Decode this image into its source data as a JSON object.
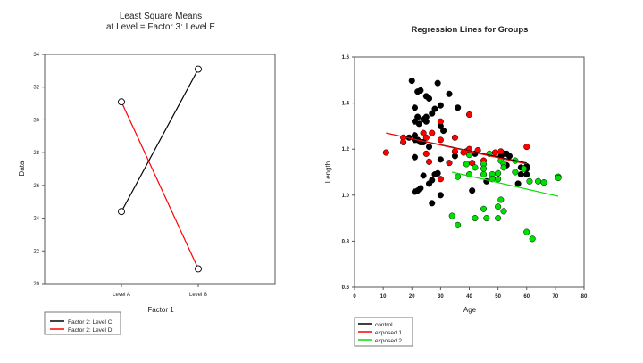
{
  "chart_data": [
    {
      "type": "line",
      "title": "Least Square Means",
      "subtitle": "at Level = Factor 3: Level E",
      "xlabel": "Factor 1",
      "ylabel": "Data",
      "categories": [
        "Level A",
        "Level B"
      ],
      "ylim": [
        20,
        34
      ],
      "yticks": [
        20,
        22,
        24,
        26,
        28,
        30,
        32,
        34
      ],
      "grid": false,
      "legend_position": "bottom-left",
      "series": [
        {
          "name": "Factor 2: Level C",
          "color": "#000000",
          "values": [
            24.4,
            33.1
          ]
        },
        {
          "name": "Factor 2: Level D",
          "color": "#ff0000",
          "values": [
            31.1,
            20.9
          ]
        }
      ]
    },
    {
      "type": "scatter",
      "title": "Regression Lines for Groups",
      "xlabel": "Age",
      "ylabel": "Length",
      "xlim": [
        0,
        80
      ],
      "ylim": [
        0.6,
        1.6
      ],
      "xticks": [
        0,
        10,
        20,
        30,
        40,
        50,
        60,
        70,
        80
      ],
      "yticks": [
        0.6,
        0.8,
        1.0,
        1.2,
        1.4,
        1.6
      ],
      "grid": false,
      "legend_position": "bottom-left",
      "series": [
        {
          "name": "control",
          "color": "#000000",
          "regression": [
            [
              20,
              1.245
            ],
            [
              60,
              1.14
            ]
          ],
          "points": [
            [
              20,
              1.497
            ],
            [
              29,
              1.487
            ],
            [
              22,
              1.45
            ],
            [
              23,
              1.455
            ],
            [
              25,
              1.43
            ],
            [
              26,
              1.42
            ],
            [
              33,
              1.44
            ],
            [
              21,
              1.38
            ],
            [
              28,
              1.375
            ],
            [
              30,
              1.39
            ],
            [
              36,
              1.38
            ],
            [
              27,
              1.355
            ],
            [
              22,
              1.34
            ],
            [
              24,
              1.33
            ],
            [
              25,
              1.34
            ],
            [
              21,
              1.32
            ],
            [
              22.5,
              1.31
            ],
            [
              25,
              1.32
            ],
            [
              30,
              1.3
            ],
            [
              31,
              1.28
            ],
            [
              19,
              1.25
            ],
            [
              21,
              1.26
            ],
            [
              21,
              1.24
            ],
            [
              22,
              1.24
            ],
            [
              23,
              1.23
            ],
            [
              24,
              1.23
            ],
            [
              26,
              1.21
            ],
            [
              21,
              1.165
            ],
            [
              30,
              1.155
            ],
            [
              35,
              1.17
            ],
            [
              24,
              1.085
            ],
            [
              28,
              1.09
            ],
            [
              29,
              1.095
            ],
            [
              27,
              1.065
            ],
            [
              26,
              1.05
            ],
            [
              23,
              1.03
            ],
            [
              22,
              1.02
            ],
            [
              21,
              1.015
            ],
            [
              27,
              0.965
            ],
            [
              30,
              1.0
            ],
            [
              41,
              1.02
            ],
            [
              46,
              1.06
            ],
            [
              42,
              1.18
            ],
            [
              52,
              1.18
            ],
            [
              53,
              1.18
            ],
            [
              54,
              1.17
            ],
            [
              51,
              1.17
            ],
            [
              53,
              1.13
            ],
            [
              58,
              1.12
            ],
            [
              60,
              1.125
            ],
            [
              60,
              1.115
            ],
            [
              58,
              1.09
            ],
            [
              60,
              1.09
            ],
            [
              57,
              1.05
            ]
          ]
        },
        {
          "name": "exposed 1",
          "color": "#ff0000",
          "regression": [
            [
              11,
              1.27
            ],
            [
              60,
              1.135
            ]
          ],
          "points": [
            [
              11,
              1.185
            ],
            [
              17,
              1.25
            ],
            [
              17,
              1.23
            ],
            [
              24,
              1.27
            ],
            [
              27,
              1.27
            ],
            [
              25,
              1.25
            ],
            [
              30,
              1.32
            ],
            [
              30,
              1.24
            ],
            [
              35,
              1.25
            ],
            [
              40,
              1.35
            ],
            [
              25,
              1.18
            ],
            [
              26,
              1.145
            ],
            [
              33,
              1.14
            ],
            [
              30,
              1.07
            ],
            [
              35,
              1.19
            ],
            [
              38,
              1.185
            ],
            [
              39,
              1.19
            ],
            [
              40,
              1.2
            ],
            [
              43,
              1.195
            ],
            [
              41,
              1.14
            ],
            [
              45,
              1.15
            ],
            [
              49,
              1.185
            ],
            [
              51,
              1.19
            ],
            [
              60,
              1.21
            ]
          ]
        },
        {
          "name": "exposed 2",
          "color": "#00e000",
          "regression": [
            [
              34,
              1.1
            ],
            [
              71,
              0.995
            ]
          ],
          "points": [
            [
              40,
              1.175
            ],
            [
              47,
              1.18
            ],
            [
              51,
              1.15
            ],
            [
              56,
              1.15
            ],
            [
              39,
              1.135
            ],
            [
              42,
              1.12
            ],
            [
              45,
              1.135
            ],
            [
              45,
              1.115
            ],
            [
              45,
              1.09
            ],
            [
              40,
              1.09
            ],
            [
              36,
              1.08
            ],
            [
              48,
              1.09
            ],
            [
              48,
              1.07
            ],
            [
              50,
              1.095
            ],
            [
              50,
              1.07
            ],
            [
              52,
              1.135
            ],
            [
              52,
              1.12
            ],
            [
              56,
              1.1
            ],
            [
              59,
              1.115
            ],
            [
              61,
              1.06
            ],
            [
              64,
              1.06
            ],
            [
              66,
              1.055
            ],
            [
              71,
              1.08
            ],
            [
              71,
              1.075
            ],
            [
              51,
              0.98
            ],
            [
              50,
              0.95
            ],
            [
              45,
              0.94
            ],
            [
              52,
              0.93
            ],
            [
              34,
              0.91
            ],
            [
              36,
              0.87
            ],
            [
              42,
              0.9
            ],
            [
              46,
              0.9
            ],
            [
              50,
              0.9
            ],
            [
              60,
              0.84
            ],
            [
              62,
              0.81
            ]
          ]
        }
      ]
    }
  ]
}
